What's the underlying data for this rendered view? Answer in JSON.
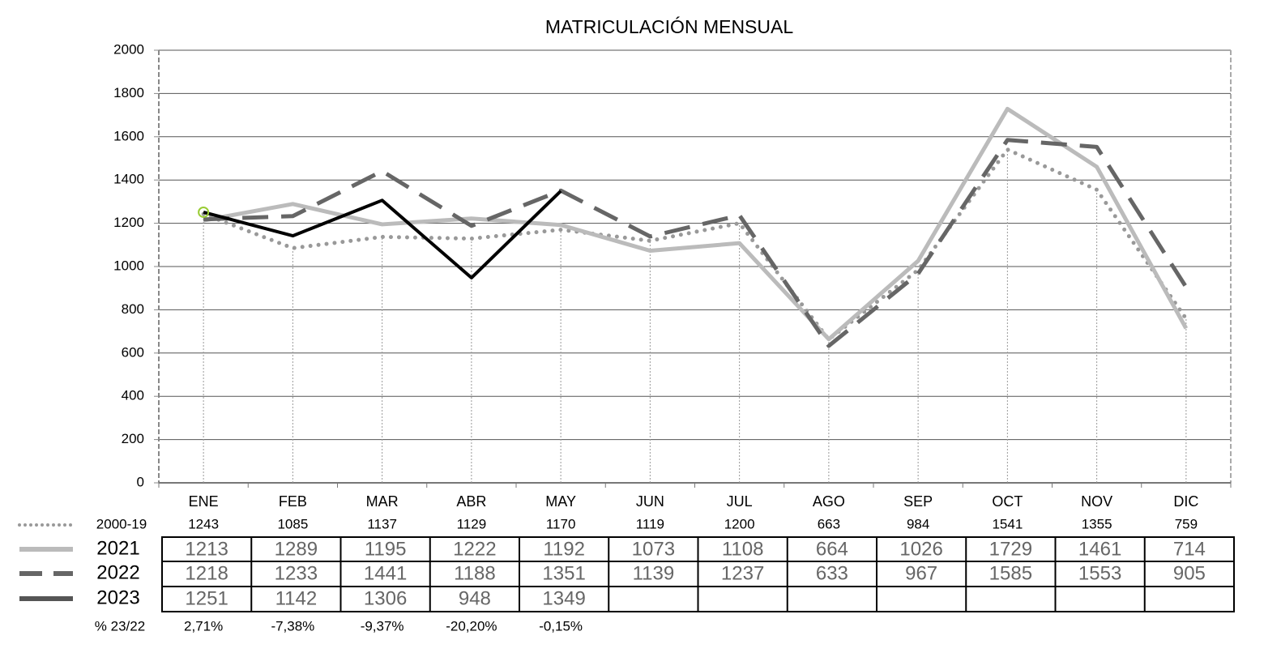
{
  "chart_data": {
    "type": "line",
    "title": "MATRICULACIÓN MENSUAL",
    "categories": [
      "ENE",
      "FEB",
      "MAR",
      "ABR",
      "MAY",
      "JUN",
      "JUL",
      "AGO",
      "SEP",
      "OCT",
      "NOV",
      "DIC"
    ],
    "series": [
      {
        "name": "2000-19",
        "color": "#999999",
        "style": "dotted",
        "values": [
          1243,
          1085,
          1137,
          1129,
          1170,
          1119,
          1200,
          663,
          984,
          1541,
          1355,
          759
        ]
      },
      {
        "name": "2021",
        "color": "#bbbbbb",
        "style": "solid",
        "values": [
          1213,
          1289,
          1195,
          1222,
          1192,
          1073,
          1108,
          664,
          1026,
          1729,
          1461,
          714
        ]
      },
      {
        "name": "2022",
        "color": "#666666",
        "style": "dashed",
        "values": [
          1218,
          1233,
          1441,
          1188,
          1351,
          1139,
          1237,
          633,
          967,
          1585,
          1553,
          905
        ]
      },
      {
        "name": "2023",
        "color": "#000000",
        "style": "solid",
        "values": [
          1251,
          1142,
          1306,
          948,
          1349,
          null,
          null,
          null,
          null,
          null,
          null,
          null
        ]
      }
    ],
    "change_label": "% 23/22",
    "change": [
      "2,71%",
      "-7,38%",
      "-9,37%",
      "-20,20%",
      "-0,15%"
    ],
    "ylim": [
      0,
      2000
    ],
    "yticks": [
      0,
      200,
      400,
      600,
      800,
      1000,
      1200,
      1400,
      1600,
      1800,
      2000
    ],
    "grid": true
  }
}
